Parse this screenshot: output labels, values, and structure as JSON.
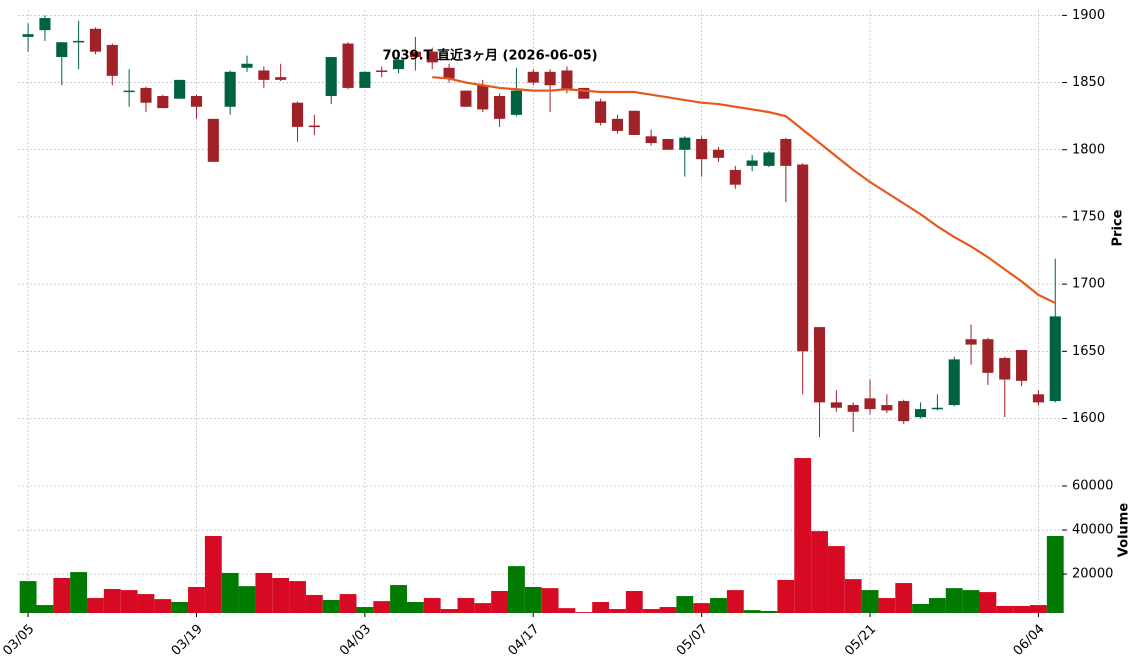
{
  "chart_data": {
    "type": "candlestick",
    "title": "7039.T 直近3ヶ月 (2026-06-05)",
    "categories": [
      "03/05",
      null,
      null,
      null,
      null,
      null,
      null,
      null,
      null,
      null,
      "03/19",
      null,
      null,
      null,
      null,
      null,
      null,
      null,
      null,
      null,
      "04/03",
      null,
      null,
      null,
      null,
      null,
      null,
      null,
      null,
      null,
      "04/17",
      null,
      null,
      null,
      null,
      null,
      null,
      null,
      null,
      null,
      "05/07",
      null,
      null,
      null,
      null,
      null,
      null,
      null,
      null,
      null,
      "05/21",
      null,
      null,
      null,
      null,
      null,
      null,
      null,
      null,
      null,
      "06/04",
      null
    ],
    "open": [
      1884,
      1889,
      1869,
      1880,
      1890,
      1878,
      1843,
      1846,
      1840,
      1838,
      1840,
      1823,
      1832,
      1861,
      1859,
      1854,
      1835,
      1818,
      1840,
      1879,
      1846,
      1859,
      1860,
      1873,
      1873,
      1861,
      1844,
      1848,
      1840,
      1826,
      1858,
      1858,
      1859,
      1846,
      1836,
      1823,
      1829,
      1810,
      1808,
      1800,
      1808,
      1800,
      1785,
      1788,
      1788,
      1808,
      1789,
      1668,
      1612,
      1610,
      1615,
      1610,
      1613,
      1601,
      1607,
      1610,
      1659,
      1659,
      1645,
      1651,
      1618,
      1613
    ],
    "high": [
      1894,
      1900,
      1880,
      1896,
      1891,
      1879,
      1860,
      1847,
      1841,
      1852,
      1841,
      1823,
      1859,
      1870,
      1862,
      1864,
      1836,
      1826,
      1869,
      1880,
      1858,
      1862,
      1869,
      1884,
      1876,
      1864,
      1844,
      1852,
      1842,
      1861,
      1860,
      1860,
      1862,
      1846,
      1838,
      1826,
      1829,
      1815,
      1808,
      1810,
      1810,
      1802,
      1788,
      1796,
      1799,
      1809,
      1790,
      1668,
      1621,
      1612,
      1629,
      1618,
      1614,
      1612,
      1618,
      1646,
      1670,
      1660,
      1646,
      1651,
      1621,
      1719
    ],
    "low": [
      1873,
      1881,
      1848,
      1860,
      1871,
      1848,
      1832,
      1828,
      1831,
      1838,
      1823,
      1791,
      1826,
      1858,
      1846,
      1851,
      1806,
      1811,
      1834,
      1845,
      1846,
      1854,
      1857,
      1859,
      1860,
      1850,
      1832,
      1828,
      1817,
      1825,
      1848,
      1828,
      1842,
      1838,
      1818,
      1812,
      1811,
      1803,
      1800,
      1780,
      1780,
      1791,
      1771,
      1784,
      1787,
      1761,
      1618,
      1586,
      1605,
      1590,
      1603,
      1604,
      1596,
      1600,
      1606,
      1609,
      1640,
      1625,
      1601,
      1624,
      1610,
      1612
    ],
    "close": [
      1886,
      1898,
      1880,
      1881,
      1873,
      1855,
      1844,
      1835,
      1831,
      1852,
      1832,
      1791,
      1858,
      1864,
      1852,
      1852,
      1817,
      1817,
      1869,
      1846,
      1858,
      1858,
      1867,
      1869,
      1865,
      1853,
      1832,
      1830,
      1823,
      1844,
      1850,
      1848,
      1845,
      1838,
      1820,
      1814,
      1811,
      1805,
      1800,
      1809,
      1793,
      1794,
      1774,
      1792,
      1798,
      1788,
      1650,
      1612,
      1608,
      1605,
      1607,
      1606,
      1598,
      1607,
      1608,
      1644,
      1655,
      1634,
      1629,
      1628,
      1612,
      1676
    ],
    "up_color": "#006340",
    "down_color": "#a02128",
    "moving_average": {
      "color": "#e8581c",
      "values": [
        null,
        null,
        null,
        null,
        null,
        null,
        null,
        null,
        null,
        null,
        null,
        null,
        null,
        null,
        null,
        null,
        null,
        null,
        null,
        null,
        null,
        null,
        null,
        null,
        1854,
        1853,
        1850,
        1848,
        1846,
        1845,
        1844,
        1844,
        1845,
        1844,
        1843,
        1843,
        1843,
        1841,
        1839,
        1837,
        1835,
        1834,
        1832,
        1830,
        1828,
        1825,
        1815,
        1805,
        1795,
        1785,
        1776,
        1768,
        1760,
        1752,
        1743,
        1735,
        1728,
        1720,
        1711,
        1702,
        1692,
        1686
      ]
    },
    "ylabel": "Price",
    "ylim": [
      1584,
      1904
    ],
    "yticks": [
      1600,
      1650,
      1700,
      1750,
      1800,
      1850,
      1900
    ],
    "volume": {
      "ylabel": "Volume",
      "ylim": [
        2300,
        80900
      ],
      "yticks": [
        20000,
        40000,
        60000
      ],
      "values": [
        16800,
        5900,
        18200,
        20900,
        9100,
        13200,
        12700,
        10900,
        8600,
        7300,
        14100,
        37300,
        20500,
        14500,
        20500,
        18200,
        16800,
        10500,
        8200,
        10900,
        5000,
        7700,
        15000,
        7300,
        9100,
        4100,
        9100,
        6800,
        12300,
        23600,
        14100,
        13600,
        4500,
        2700,
        7300,
        4100,
        12300,
        4100,
        5000,
        10000,
        6800,
        9100,
        12700,
        3600,
        3200,
        17300,
        72700,
        39500,
        32700,
        17700,
        12700,
        9100,
        15900,
        6400,
        9100,
        13600,
        12700,
        11800,
        5500,
        5500,
        5900,
        37300
      ],
      "colors": [
        "#007a00",
        "#007a00",
        "#d60a22",
        "#007a00",
        "#d60a22",
        "#d60a22",
        "#d60a22",
        "#d60a22",
        "#d60a22",
        "#007a00",
        "#d60a22",
        "#d60a22",
        "#007a00",
        "#007a00",
        "#d60a22",
        "#d60a22",
        "#d60a22",
        "#d60a22",
        "#007a00",
        "#d60a22",
        "#007a00",
        "#d60a22",
        "#007a00",
        "#007a00",
        "#d60a22",
        "#d60a22",
        "#d60a22",
        "#d60a22",
        "#d60a22",
        "#007a00",
        "#007a00",
        "#d60a22",
        "#d60a22",
        "#d60a22",
        "#d60a22",
        "#d60a22",
        "#d60a22",
        "#d60a22",
        "#d60a22",
        "#007a00",
        "#d60a22",
        "#007a00",
        "#d60a22",
        "#007a00",
        "#007a00",
        "#d60a22",
        "#d60a22",
        "#d60a22",
        "#d60a22",
        "#d60a22",
        "#007a00",
        "#d60a22",
        "#d60a22",
        "#007a00",
        "#007a00",
        "#007a00",
        "#007a00",
        "#d60a22",
        "#d60a22",
        "#d60a22",
        "#d60a22",
        "#007a00"
      ]
    },
    "grid": true
  }
}
